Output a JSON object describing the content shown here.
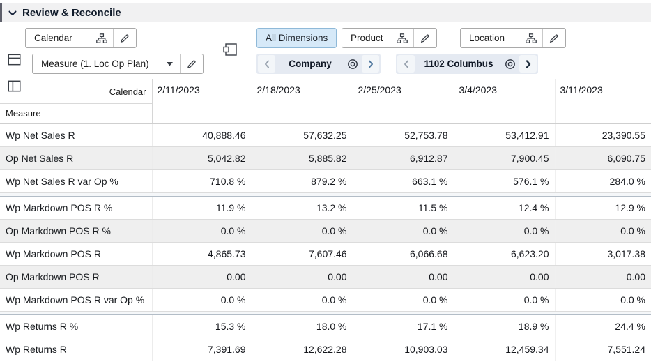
{
  "header": {
    "title": "Review & Reconcile"
  },
  "toolbar": {
    "calendar_tile": "Calendar",
    "measure_tile": "Measure (1. Loc Op Plan)",
    "all_dimensions": "All Dimensions",
    "product_tile": "Product",
    "location_tile": "Location",
    "company_pager": "Company",
    "position_pager": "1102 Columbus"
  },
  "grid": {
    "corner_row_label": "Calendar",
    "corner_col_label": "Measure",
    "columns": [
      "2/11/2023",
      "2/18/2023",
      "2/25/2023",
      "3/4/2023",
      "3/11/2023"
    ],
    "groups": [
      {
        "rows": [
          {
            "label": "Wp Net Sales R",
            "shaded": false,
            "values": [
              "40,888.46",
              "57,632.25",
              "52,753.78",
              "53,412.91",
              "23,390.55"
            ]
          },
          {
            "label": "Op Net Sales R",
            "shaded": true,
            "values": [
              "5,042.82",
              "5,885.82",
              "6,912.87",
              "7,900.45",
              "6,090.75"
            ]
          },
          {
            "label": "Wp Net Sales R var Op %",
            "shaded": false,
            "values": [
              "710.8 %",
              "879.2 %",
              "663.1 %",
              "576.1 %",
              "284.0 %"
            ]
          }
        ]
      },
      {
        "rows": [
          {
            "label": "Wp Markdown POS R %",
            "shaded": false,
            "values": [
              "11.9 %",
              "13.2 %",
              "11.5 %",
              "12.4 %",
              "12.9 %"
            ]
          },
          {
            "label": "Op Markdown POS R %",
            "shaded": true,
            "values": [
              "0.0 %",
              "0.0 %",
              "0.0 %",
              "0.0 %",
              "0.0 %"
            ]
          },
          {
            "label": "Wp Markdown POS R",
            "shaded": false,
            "values": [
              "4,865.73",
              "7,607.46",
              "6,066.68",
              "6,623.20",
              "3,017.38"
            ]
          },
          {
            "label": "Op Markdown POS R",
            "shaded": true,
            "values": [
              "0.00",
              "0.00",
              "0.00",
              "0.00",
              "0.00"
            ]
          },
          {
            "label": "Wp Markdown POS R var Op %",
            "shaded": false,
            "values": [
              "0.0 %",
              "0.0 %",
              "0.0 %",
              "0.0 %",
              "0.0 %"
            ]
          }
        ]
      },
      {
        "rows": [
          {
            "label": "Wp Returns R %",
            "shaded": false,
            "values": [
              "15.3 %",
              "18.0 %",
              "17.1 %",
              "18.9 %",
              "24.4 %"
            ]
          },
          {
            "label": "Wp Returns R",
            "shaded": false,
            "values": [
              "7,391.69",
              "12,622.28",
              "10,903.03",
              "12,459.34",
              "7,551.24"
            ]
          }
        ]
      }
    ]
  },
  "icons": {
    "header_collapse": "chevron-down",
    "layout_rows": "split-horizontal-square",
    "layout_cols": "split-vertical-square",
    "hierarchy": "org-chart",
    "edit": "pencil",
    "measure_dropdown": "caret-down",
    "pane_toggle": "overlapping-squares",
    "scope": "bullseye",
    "page_prev": "chevron-left",
    "page_next": "chevron-right"
  },
  "colors": {
    "selected_dimension_bg": "#d6e9f8",
    "selected_dimension_border": "#8fb9d8",
    "pager_bg": "#e5eaf2",
    "shaded_row_bg": "#efefef",
    "header_bar_bg": "#f1f1f2",
    "grid_line": "#dcdcdc",
    "group_separator": "#b3bdc7"
  }
}
